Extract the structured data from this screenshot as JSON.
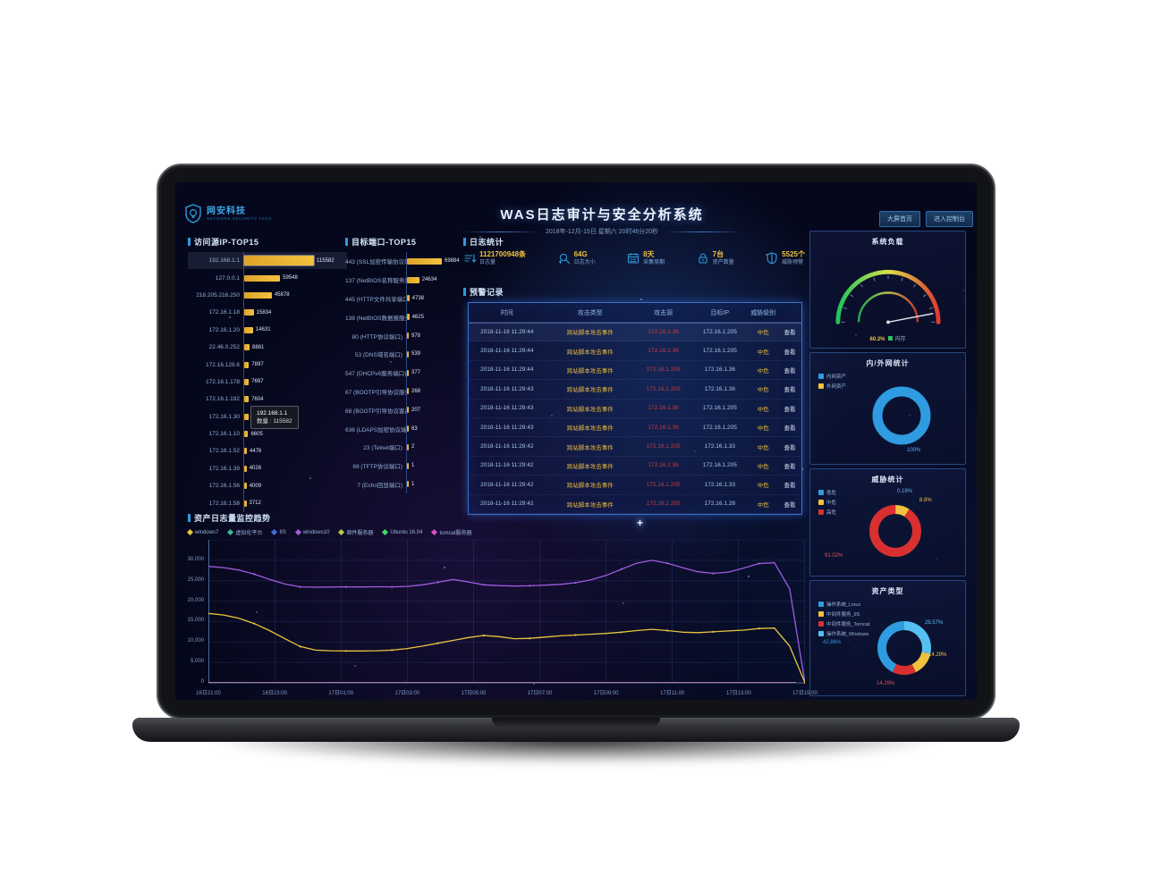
{
  "header": {
    "logo_text": "网安科技",
    "logo_tagline": "NETWORK SECURITY TECH",
    "title": "WAS日志审计与安全分析系统",
    "subtitle": "2018年-12月-15日 星期六 20时46分20秒",
    "buttons": [
      {
        "label": "大屏首页"
      },
      {
        "label": "进入控制台"
      }
    ]
  },
  "sections": {
    "ip_top15": "访问源IP-TOP15",
    "port_top15": "目标端口-TOP15",
    "log_stats": "日志统计",
    "alerts": "预警记录",
    "trend": "资产日志量监控趋势"
  },
  "stats": [
    {
      "icon": "sort-icon",
      "value": "1121700948条",
      "label": "日志量"
    },
    {
      "icon": "magnifier-icon",
      "value": "64G",
      "label": "日志大小"
    },
    {
      "icon": "calendar-icon",
      "value": "8天",
      "label": "采集周期"
    },
    {
      "icon": "lock-icon",
      "value": "7台",
      "label": "资产数量"
    },
    {
      "icon": "shield-icon",
      "value": "5525个",
      "label": "威胁预警"
    }
  ],
  "tooltip": {
    "ip": "192.168.1.1",
    "label": "数量 : 115582"
  },
  "alert_table": {
    "headers": [
      "时间",
      "攻击类型",
      "攻击源",
      "目标IP",
      "威胁级别",
      ""
    ],
    "rows": [
      {
        "time": "2018-11-16 11:29:44",
        "type": "跨站脚本攻击事件",
        "source": "172.16.1.36",
        "target": "172.16.1.205",
        "level": "中危",
        "action": "查看"
      },
      {
        "time": "2018-11-16 11:29:44",
        "type": "跨站脚本攻击事件",
        "source": "172.16.1.36",
        "target": "172.16.1.205",
        "level": "中危",
        "action": "查看"
      },
      {
        "time": "2018-11-16 11:29:44",
        "type": "跨站脚本攻击事件",
        "source": "172.16.1.205",
        "target": "172.16.1.36",
        "level": "中危",
        "action": "查看"
      },
      {
        "time": "2018-11-16 11:29:43",
        "type": "跨站脚本攻击事件",
        "source": "172.16.1.205",
        "target": "172.16.1.36",
        "level": "中危",
        "action": "查看"
      },
      {
        "time": "2018-11-16 11:29:43",
        "type": "跨站脚本攻击事件",
        "source": "172.16.1.36",
        "target": "172.16.1.205",
        "level": "中危",
        "action": "查看"
      },
      {
        "time": "2018-11-16 11:29:43",
        "type": "跨站脚本攻击事件",
        "source": "172.16.1.36",
        "target": "172.16.1.205",
        "level": "中危",
        "action": "查看"
      },
      {
        "time": "2018-11-16 11:29:42",
        "type": "跨站脚本攻击事件",
        "source": "172.16.1.205",
        "target": "172.16.1.33",
        "level": "中危",
        "action": "查看"
      },
      {
        "time": "2018-11-16 11:29:42",
        "type": "跨站脚本攻击事件",
        "source": "172.16.1.36",
        "target": "172.16.1.205",
        "level": "中危",
        "action": "查看"
      },
      {
        "time": "2018-11-16 11:29:42",
        "type": "跨站脚本攻击事件",
        "source": "172.16.1.205",
        "target": "172.16.1.33",
        "level": "中危",
        "action": "查看"
      },
      {
        "time": "2018-11-16 11:29:42",
        "type": "跨站脚本攻击事件",
        "source": "172.16.1.205",
        "target": "172.16.1.28",
        "level": "中危",
        "action": "查看"
      }
    ]
  },
  "chart_data": [
    {
      "id": "ip_top15",
      "type": "bar",
      "orientation": "horizontal",
      "title": "访问源IP-TOP15",
      "bar_color": "#f2c23e",
      "categories": [
        "192.168.1.1",
        "127.0.0.1",
        "218.205.216.250",
        "172.16.1.18",
        "172.16.1.20",
        "22.46.0.252",
        "172.16.128.6",
        "172.16.1.178",
        "172.16.1.192",
        "172.16.1.30",
        "172.16.1.10",
        "172.16.1.52",
        "172.16.1.39",
        "172.16.1.56",
        "172.16.1.58"
      ],
      "values": [
        115582,
        59548,
        45878,
        15834,
        14631,
        8881,
        7897,
        7697,
        7604,
        7600,
        6605,
        4476,
        4026,
        4009,
        3712
      ]
    },
    {
      "id": "port_top15",
      "type": "bar",
      "orientation": "horizontal",
      "title": "目标端口-TOP15",
      "bar_color": "#f2c23e",
      "categories": [
        "443 (SSL加密传输协议端口(s))",
        "137 (NetBIOS名称服务端口)",
        "445 (HTTP文件共享端口(s))",
        "138 (NetBIOS数据报服务端口)",
        "80 (HTTP协议端口)",
        "53 (DNS域名端口)",
        "547 (DHCPv6服务端口)",
        "67 (BOOTP引导协议服务端口)",
        "68 (BOOTP引导协议客户端口)",
        "636 (LDAPS加密协议端口)",
        "23 (Telnet端口)",
        "69 (TFTP协议端口)",
        "7 (Echo回显端口)"
      ],
      "values": [
        69884,
        24634,
        4738,
        4625,
        978,
        539,
        377,
        268,
        207,
        63,
        2,
        1,
        1
      ]
    },
    {
      "id": "asset_log_trend",
      "type": "line",
      "title": "资产日志量监控趋势",
      "x_ticks": [
        "16日21:00",
        "16日23:00",
        "17日01:00",
        "17日03:00",
        "17日05:00",
        "17日07:00",
        "17日09:00",
        "17日11:00",
        "17日13:00",
        "17日15:00"
      ],
      "y_ticks": [
        0,
        5000,
        10000,
        15000,
        20000,
        25000,
        30000
      ],
      "ylim": [
        0,
        35000
      ],
      "grid": true,
      "legend_position": "top",
      "legend": [
        {
          "label": "windows7",
          "color": "#e8c53e"
        },
        {
          "label": "虚拟化平台",
          "color": "#35b89a"
        },
        {
          "label": "IIS",
          "color": "#3f6fd8"
        },
        {
          "label": "windows10",
          "color": "#a05ce0"
        },
        {
          "label": "邮件服务器",
          "color": "#b7c94a"
        },
        {
          "label": "Ubuntu 16.04",
          "color": "#3ddc6a"
        },
        {
          "label": "tomcat服务器",
          "color": "#d84fc0"
        }
      ],
      "series": [
        {
          "name": "windows10",
          "color": "#a05ce0",
          "values": [
            28500,
            28200,
            27600,
            26600,
            25300,
            24200,
            23500,
            23400,
            23450,
            23500,
            23480,
            23520,
            23500,
            23600,
            24000,
            24600,
            25300,
            24700,
            24000,
            23800,
            23700,
            23750,
            23900,
            24100,
            24500,
            25200,
            26300,
            27800,
            29300,
            30000,
            29300,
            28200,
            27200,
            26800,
            27100,
            28100,
            29200,
            29400,
            23000,
            0
          ]
        },
        {
          "name": "windows7",
          "color": "#e8c53e",
          "values": [
            17000,
            16600,
            15800,
            14500,
            12800,
            10800,
            8900,
            8000,
            7850,
            7800,
            7820,
            7850,
            8000,
            8400,
            9000,
            9700,
            10400,
            11100,
            11600,
            11300,
            10800,
            10900,
            11200,
            11500,
            11700,
            11900,
            12100,
            12400,
            12800,
            13100,
            12800,
            12400,
            12300,
            12500,
            12700,
            12900,
            13300,
            13400,
            9000,
            0
          ]
        },
        {
          "name": "虚拟化平台",
          "color": "#35b89a",
          "flat_zero": true
        },
        {
          "name": "IIS",
          "color": "#3f6fd8",
          "flat_zero": true
        },
        {
          "name": "邮件服务器",
          "color": "#b7c94a",
          "flat_zero": true
        },
        {
          "name": "Ubuntu 16.04",
          "color": "#3ddc6a",
          "flat_zero": true
        },
        {
          "name": "tomcat服务器",
          "color": "#d84fc0",
          "flat_zero": true
        }
      ]
    },
    {
      "id": "system_load_gauge",
      "type": "gauge",
      "title": "系统负载",
      "caption_value": "60.2%",
      "caption_label": "内存",
      "arc_colors": [
        "#21c45a",
        "#d9e24a",
        "#e23a2e"
      ]
    },
    {
      "id": "net_stats_donut",
      "type": "pie",
      "title": "内/外网统计",
      "slices": [
        {
          "label": "内网资产",
          "value": 100,
          "color": "#2f9be0",
          "pct_label": "100%"
        },
        {
          "label": "外网资产",
          "value": 0,
          "color": "#f2c23e",
          "pct_label": ""
        }
      ]
    },
    {
      "id": "threat_donut",
      "type": "pie",
      "title": "威胁统计",
      "slices": [
        {
          "label": "低危",
          "value": 0.18,
          "color": "#2f9be0",
          "pct_label": "0.18%"
        },
        {
          "label": "中危",
          "value": 8.8,
          "color": "#f2c23e",
          "pct_label": "8.8%"
        },
        {
          "label": "高危",
          "value": 91.02,
          "color": "#d83030",
          "pct_label": "91.02%"
        }
      ]
    },
    {
      "id": "asset_type_donut",
      "type": "pie",
      "title": "资产类型",
      "legend": [
        "操作系统_Linux",
        "中间件服务_IIS",
        "中间件服务_Tomcat",
        "操作系统_Windows"
      ],
      "slices": [
        {
          "label": "操作系统_Windows",
          "value": 28.57,
          "color": "#55c0f0",
          "pct_label": "28.57%"
        },
        {
          "label": "中间件服务_IIS",
          "value": 14.29,
          "color": "#f2c23e",
          "pct_label": "14.29%"
        },
        {
          "label": "中间件服务_Tomcat",
          "value": 14.29,
          "color": "#d83030",
          "pct_label": "14.29%"
        },
        {
          "label": "操作系统_Linux",
          "value": 42.86,
          "color": "#2f9be0",
          "pct_label": "42.86%"
        }
      ]
    }
  ]
}
